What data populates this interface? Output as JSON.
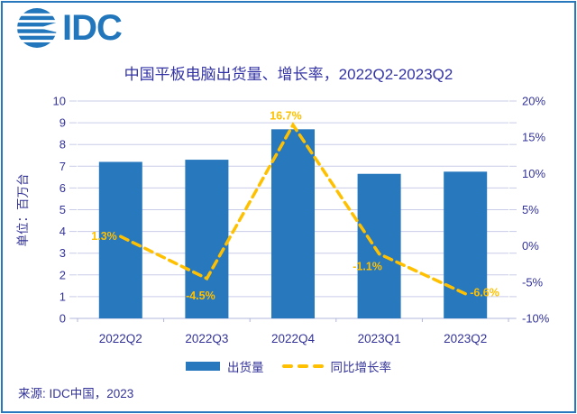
{
  "logo": {
    "text": "IDC"
  },
  "source": "来源: IDC中国，2023",
  "colors": {
    "bar": "#2878BE",
    "line": "#FFC000",
    "label": "#FFC000",
    "text": "#333399",
    "title": "#3333A6",
    "grid": "#C9CCE9",
    "axis_line": "#B0B6DC",
    "border": "#2878BE",
    "logo": "#2277BC"
  },
  "chart_data": {
    "type": "bar",
    "title": "中国平板电脑出货量、增长率，2022Q2-2023Q2",
    "categories": [
      "2022Q2",
      "2022Q3",
      "2022Q4",
      "2023Q1",
      "2023Q2"
    ],
    "series": [
      {
        "name": "出货量",
        "type": "bar",
        "axis": "left",
        "values": [
          7.2,
          7.3,
          8.7,
          6.65,
          6.75
        ]
      },
      {
        "name": "同比增长率",
        "type": "line",
        "axis": "right",
        "values": [
          1.3,
          -4.5,
          16.7,
          -1.1,
          -6.6
        ],
        "point_labels": [
          "1.3%",
          "-4.5%",
          "16.7%",
          "-1.1%",
          "-6.6%"
        ]
      }
    ],
    "left_axis": {
      "title": "单位：百万台",
      "min": 0,
      "max": 10,
      "step": 1
    },
    "right_axis": {
      "min": -10,
      "max": 20,
      "step": 5,
      "suffix": "%"
    },
    "grid": true,
    "legend_position": "bottom"
  }
}
